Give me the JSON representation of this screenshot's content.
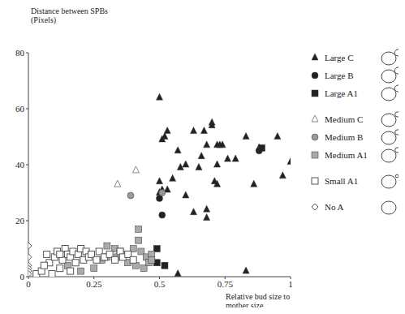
{
  "chart_data": {
    "type": "scatter",
    "y_label": "Distance between SPBs (Pixels)",
    "x_label": "Relative bud size to mother size",
    "xlim": [
      0,
      1
    ],
    "xticks": [
      0,
      0.25,
      0.5,
      0.75,
      1
    ],
    "ylim": [
      0,
      80
    ],
    "yticks": [
      0,
      20,
      40,
      60,
      80
    ],
    "grid": false,
    "legend": "right",
    "series": [
      {
        "name": "Large C",
        "color": "#222222",
        "marker": "triangle",
        "x": [
          0.5,
          0.52,
          0.53,
          0.51,
          0.5,
          0.51,
          0.5,
          0.53,
          0.55,
          0.57,
          0.6,
          0.58,
          0.63,
          0.67,
          0.68,
          0.65,
          0.66,
          0.63,
          0.6,
          0.68,
          0.68,
          0.7,
          0.7,
          0.72,
          0.73,
          0.74,
          0.72,
          0.71,
          0.72,
          0.76,
          0.79,
          0.83,
          0.86,
          0.88,
          0.95,
          0.97,
          1.0,
          0.83,
          0.57
        ],
        "y": [
          64,
          50,
          52,
          49,
          34,
          31,
          30,
          31,
          35,
          45,
          40,
          39,
          52,
          52,
          47,
          39,
          43,
          23,
          29,
          24,
          21,
          55,
          54,
          47,
          47,
          47,
          40,
          34,
          33,
          42,
          42,
          50,
          33,
          46,
          50,
          36,
          41,
          2,
          1
        ]
      },
      {
        "name": "Large B",
        "color": "#222222",
        "marker": "circle",
        "x": [
          0.51,
          0.5,
          0.88
        ],
        "y": [
          22,
          28,
          45
        ]
      },
      {
        "name": "Large A1",
        "color": "#222222",
        "marker": "square",
        "x": [
          0.49,
          0.49,
          0.52,
          0.89
        ],
        "y": [
          10,
          5,
          4,
          46
        ]
      },
      {
        "name": "Medium C",
        "color": "#888888",
        "marker": "triangle-open",
        "x": [
          0.34,
          0.41
        ],
        "y": [
          33,
          38
        ]
      },
      {
        "name": "Medium B",
        "color": "#999999",
        "marker": "circle",
        "x": [
          0.39,
          0.51
        ],
        "y": [
          29,
          30
        ]
      },
      {
        "name": "Medium A1",
        "color": "#aaaaaa",
        "marker": "square",
        "x": [
          0.42,
          0.42,
          0.3,
          0.33,
          0.35,
          0.37,
          0.4,
          0.43,
          0.45,
          0.47,
          0.28,
          0.3,
          0.38,
          0.41,
          0.44,
          0.46,
          0.25,
          0.2,
          0.15,
          0.34,
          0.47
        ],
        "y": [
          17,
          13,
          11,
          10,
          9,
          8,
          10,
          9,
          7,
          8,
          6,
          7,
          5,
          4,
          3,
          5,
          3,
          2,
          4,
          7,
          6
        ]
      },
      {
        "name": "Small A1",
        "color": "#555555",
        "marker": "square-open",
        "x": [
          0.03,
          0.05,
          0.07,
          0.08,
          0.1,
          0.11,
          0.12,
          0.13,
          0.14,
          0.15,
          0.16,
          0.17,
          0.18,
          0.19,
          0.2,
          0.21,
          0.22,
          0.23,
          0.24,
          0.26,
          0.27,
          0.29,
          0.31,
          0.33,
          0.35,
          0.36,
          0.38,
          0.4,
          0.06,
          0.09,
          0.12,
          0.16
        ],
        "y": [
          1,
          2,
          8,
          5,
          7,
          9,
          3,
          6,
          10,
          8,
          7,
          9,
          5,
          8,
          10,
          6,
          9,
          7,
          8,
          6,
          9,
          7,
          8,
          6,
          9,
          7,
          8,
          6,
          4,
          1,
          8,
          2
        ]
      },
      {
        "name": "No A",
        "color": "#555555",
        "marker": "diamond-open",
        "x": [
          0,
          0,
          0,
          0,
          0,
          0
        ],
        "y": [
          11,
          7,
          4,
          3,
          2,
          1
        ]
      }
    ]
  }
}
